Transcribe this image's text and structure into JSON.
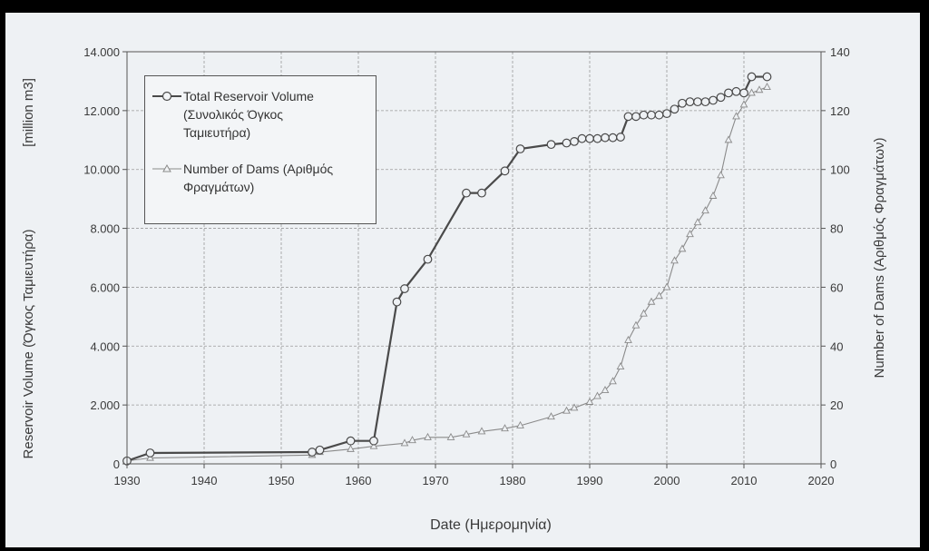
{
  "chart_data": {
    "type": "line",
    "title": "",
    "xlabel": "Date (Ημερομηνία)",
    "ylabel_left": "Reservoir Volume (Όγκος Ταμιευτήρα) [million m3]",
    "ylabel_right": "Number of Dams (Αριθμός Φραγμάτων)",
    "xlim": [
      1930,
      2020
    ],
    "ylim_left": [
      0,
      14000
    ],
    "ylim_right": [
      0,
      140
    ],
    "x_ticks": [
      "1930",
      "1940",
      "1950",
      "1960",
      "1970",
      "1980",
      "1990",
      "2000",
      "2010",
      "2020"
    ],
    "y_left_ticks": [
      "0",
      "2.000",
      "4.000",
      "6.000",
      "8.000",
      "10.000",
      "12.000",
      "14.000"
    ],
    "y_right_ticks": [
      "0",
      "20",
      "40",
      "60",
      "80",
      "100",
      "120",
      "140"
    ],
    "grid": true,
    "legend_position": "top-left",
    "series": [
      {
        "name": "Total Reservoir Volume (Συνολικός Όγκος Ταμιευτήρα)",
        "axis": "left",
        "marker": "circle",
        "color": "#4a4a4a",
        "points": [
          [
            1930,
            100
          ],
          [
            1933,
            370
          ],
          [
            1954,
            400
          ],
          [
            1955,
            470
          ],
          [
            1959,
            780
          ],
          [
            1962,
            780
          ],
          [
            1965,
            5500
          ],
          [
            1966,
            5950
          ],
          [
            1969,
            6950
          ],
          [
            1974,
            9200
          ],
          [
            1976,
            9200
          ],
          [
            1979,
            9950
          ],
          [
            1981,
            10700
          ],
          [
            1985,
            10850
          ],
          [
            1987,
            10900
          ],
          [
            1988,
            10950
          ],
          [
            1989,
            11050
          ],
          [
            1990,
            11050
          ],
          [
            1991,
            11050
          ],
          [
            1992,
            11080
          ],
          [
            1993,
            11080
          ],
          [
            1994,
            11100
          ],
          [
            1995,
            11800
          ],
          [
            1996,
            11800
          ],
          [
            1997,
            11850
          ],
          [
            1998,
            11850
          ],
          [
            1999,
            11850
          ],
          [
            2000,
            11900
          ],
          [
            2001,
            12050
          ],
          [
            2002,
            12250
          ],
          [
            2003,
            12300
          ],
          [
            2004,
            12300
          ],
          [
            2005,
            12300
          ],
          [
            2006,
            12350
          ],
          [
            2007,
            12450
          ],
          [
            2008,
            12600
          ],
          [
            2009,
            12650
          ],
          [
            2010,
            12600
          ],
          [
            2011,
            13150
          ],
          [
            2013,
            13150
          ]
        ]
      },
      {
        "name": "Number of Dams (Αριθμός Φραγμάτων)",
        "axis": "right",
        "marker": "triangle",
        "color": "#8a8a8a",
        "points": [
          [
            1930,
            1
          ],
          [
            1933,
            2
          ],
          [
            1954,
            3
          ],
          [
            1955,
            4
          ],
          [
            1959,
            5
          ],
          [
            1962,
            6
          ],
          [
            1966,
            7
          ],
          [
            1967,
            8
          ],
          [
            1969,
            9
          ],
          [
            1972,
            9
          ],
          [
            1974,
            10
          ],
          [
            1976,
            11
          ],
          [
            1979,
            12
          ],
          [
            1981,
            13
          ],
          [
            1985,
            16
          ],
          [
            1987,
            18
          ],
          [
            1988,
            19
          ],
          [
            1990,
            21
          ],
          [
            1991,
            23
          ],
          [
            1992,
            25
          ],
          [
            1993,
            28
          ],
          [
            1994,
            33
          ],
          [
            1995,
            42
          ],
          [
            1996,
            47
          ],
          [
            1997,
            51
          ],
          [
            1998,
            55
          ],
          [
            1999,
            57
          ],
          [
            2000,
            60
          ],
          [
            2001,
            69
          ],
          [
            2002,
            73
          ],
          [
            2003,
            78
          ],
          [
            2004,
            82
          ],
          [
            2005,
            86
          ],
          [
            2006,
            91
          ],
          [
            2007,
            98
          ],
          [
            2008,
            110
          ],
          [
            2009,
            118
          ],
          [
            2010,
            122
          ],
          [
            2011,
            126
          ],
          [
            2012,
            127
          ],
          [
            2013,
            128
          ]
        ]
      }
    ]
  },
  "legend": {
    "volume_line1": "Total Reservoir Volume",
    "volume_line2": "(Συνολικός Όγκος",
    "volume_line3": "Ταμιευτήρα)",
    "dams_line1": "Number of Dams  (Αριθμός",
    "dams_line2": "Φραγμάτων)"
  },
  "labels": {
    "ylabel_left_main": "Reservoir  Volume  (Όγκος Ταμιευτήρα)",
    "ylabel_left_unit": "[million m3]",
    "ylabel_right": "Number of Dams  (Αριθμός Φραγμάτων)",
    "xlabel": "Date  (Ημερομηνία)"
  },
  "colors": {
    "volume": "#4a4a4a",
    "dams": "#8a8a8a",
    "background": "#eef1f4"
  }
}
